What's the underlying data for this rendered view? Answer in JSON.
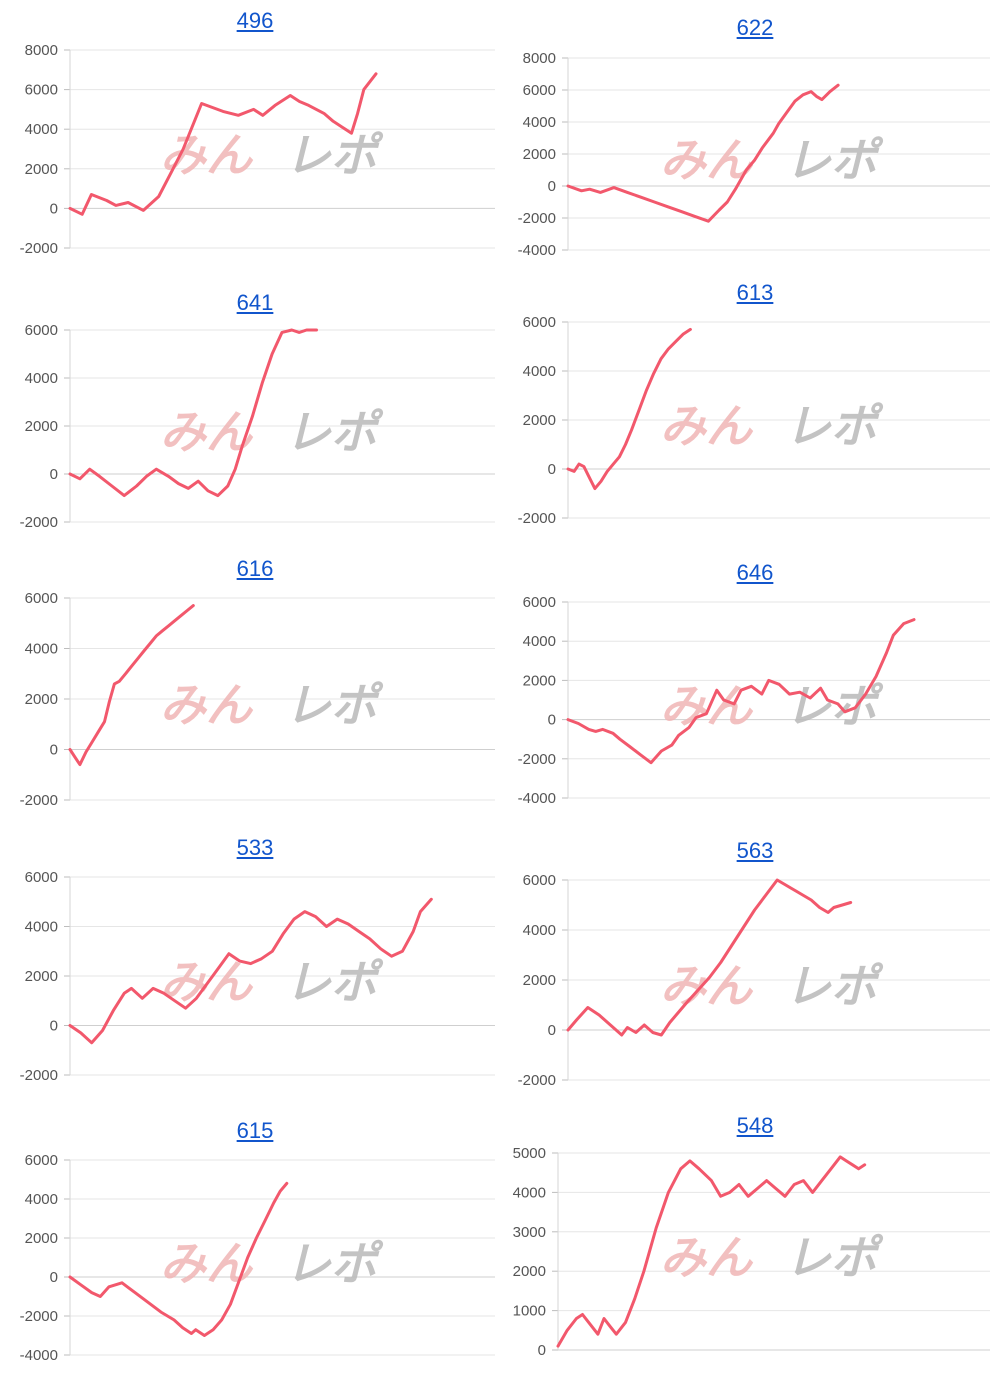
{
  "colors": {
    "series": "#f2586c",
    "grid": "#e6e6e6",
    "axis": "#bdbdbd",
    "title_link": "#1155cc",
    "watermark_red": "#f0b5b5",
    "watermark_gray": "#b8b8b8"
  },
  "watermark": {
    "text": "みんレポ"
  },
  "chart_data": [
    {
      "type": "line",
      "title": "496",
      "yticks": [
        8000,
        6000,
        4000,
        2000,
        0,
        -2000
      ],
      "ylim": [
        -2000,
        8000
      ],
      "x": [
        0,
        4,
        7,
        12,
        15,
        19,
        24,
        29,
        33,
        37,
        43,
        50,
        55,
        60,
        63,
        67,
        72,
        75,
        78,
        83,
        86,
        89,
        92,
        94,
        96,
        100
      ],
      "values": [
        0,
        -300,
        700,
        400,
        150,
        300,
        -100,
        600,
        1800,
        3000,
        5300,
        4900,
        4700,
        5000,
        4700,
        5200,
        5700,
        5400,
        5200,
        4800,
        4400,
        4100,
        3800,
        4800,
        6000,
        6800
      ]
    },
    {
      "type": "line",
      "title": "622",
      "yticks": [
        8000,
        6000,
        4000,
        2000,
        0,
        -2000,
        -4000
      ],
      "ylim": [
        -4000,
        8000
      ],
      "x": [
        0,
        5,
        8,
        12,
        17,
        22,
        27,
        32,
        37,
        42,
        47,
        52,
        56,
        59,
        62,
        66,
        69,
        72,
        76,
        78,
        81,
        84,
        87,
        90,
        92,
        94,
        97,
        100
      ],
      "values": [
        0,
        -300,
        -200,
        -400,
        -100,
        -400,
        -700,
        -1000,
        -1300,
        -1600,
        -1900,
        -2200,
        -1500,
        -1000,
        -200,
        1000,
        1600,
        2400,
        3300,
        3900,
        4600,
        5300,
        5700,
        5900,
        5600,
        5400,
        5900,
        6300
      ]
    },
    {
      "type": "line",
      "title": "641",
      "yticks": [
        6000,
        4000,
        2000,
        0,
        -2000
      ],
      "ylim": [
        -2000,
        6000
      ],
      "x": [
        0,
        4,
        8,
        12,
        17,
        22,
        27,
        31,
        35,
        40,
        44,
        48,
        52,
        56,
        60,
        64,
        67,
        70,
        74,
        78,
        82,
        86,
        90,
        93,
        96,
        100
      ],
      "values": [
        0,
        -200,
        200,
        -100,
        -500,
        -900,
        -500,
        -100,
        200,
        -100,
        -400,
        -600,
        -300,
        -700,
        -900,
        -500,
        200,
        1200,
        2400,
        3800,
        5000,
        5900,
        6000,
        5900,
        6000,
        6000
      ]
    },
    {
      "type": "line",
      "title": "613",
      "yticks": [
        6000,
        4000,
        2000,
        0,
        -2000
      ],
      "ylim": [
        -2000,
        6000
      ],
      "x": [
        0,
        5,
        9,
        13,
        17,
        22,
        27,
        32,
        37,
        42,
        47,
        52,
        58,
        64,
        70,
        76,
        82,
        88,
        94,
        100
      ],
      "values": [
        0,
        -100,
        200,
        100,
        -300,
        -800,
        -500,
        -100,
        200,
        500,
        1000,
        1600,
        2400,
        3200,
        3900,
        4500,
        4900,
        5200,
        5500,
        5700
      ]
    },
    {
      "type": "line",
      "title": "616",
      "yticks": [
        6000,
        4000,
        2000,
        0,
        -2000
      ],
      "ylim": [
        -2000,
        6000
      ],
      "x": [
        0,
        4,
        8,
        13,
        18,
        23,
        28,
        32,
        36,
        40,
        45,
        50,
        55,
        60,
        65,
        70,
        75,
        80,
        85,
        90,
        95,
        100
      ],
      "values": [
        0,
        -300,
        -600,
        -100,
        300,
        700,
        1100,
        1900,
        2600,
        2700,
        3000,
        3300,
        3600,
        3900,
        4200,
        4500,
        4700,
        4900,
        5100,
        5300,
        5500,
        5700
      ]
    },
    {
      "type": "line",
      "title": "646",
      "yticks": [
        6000,
        4000,
        2000,
        0,
        -2000,
        -4000
      ],
      "ylim": [
        -4000,
        6000
      ],
      "x": [
        0,
        3,
        6,
        8,
        10,
        13,
        15,
        18,
        21,
        24,
        27,
        30,
        32,
        35,
        37,
        40,
        43,
        45,
        48,
        50,
        53,
        56,
        58,
        61,
        64,
        67,
        70,
        73,
        75,
        78,
        80,
        83,
        86,
        89,
        92,
        94,
        97,
        100
      ],
      "values": [
        0,
        -200,
        -500,
        -600,
        -500,
        -700,
        -1000,
        -1400,
        -1800,
        -2200,
        -1600,
        -1300,
        -800,
        -400,
        100,
        300,
        1500,
        1000,
        800,
        1500,
        1700,
        1300,
        2000,
        1800,
        1300,
        1400,
        1100,
        1600,
        1000,
        800,
        400,
        600,
        1300,
        2200,
        3400,
        4300,
        4900,
        5100
      ]
    },
    {
      "type": "line",
      "title": "533",
      "yticks": [
        6000,
        4000,
        2000,
        0,
        -2000
      ],
      "ylim": [
        -2000,
        6000
      ],
      "x": [
        0,
        3,
        6,
        9,
        12,
        15,
        17,
        20,
        23,
        26,
        29,
        32,
        35,
        38,
        41,
        44,
        47,
        50,
        53,
        56,
        59,
        62,
        65,
        68,
        71,
        74,
        77,
        80,
        83,
        86,
        89,
        92,
        95,
        97,
        100
      ],
      "values": [
        0,
        -300,
        -700,
        -200,
        600,
        1300,
        1500,
        1100,
        1500,
        1300,
        1000,
        700,
        1100,
        1700,
        2300,
        2900,
        2600,
        2500,
        2700,
        3000,
        3700,
        4300,
        4600,
        4400,
        4000,
        4300,
        4100,
        3800,
        3500,
        3100,
        2800,
        3000,
        3800,
        4600,
        5100
      ]
    },
    {
      "type": "line",
      "title": "563",
      "yticks": [
        6000,
        4000,
        2000,
        0,
        -2000
      ],
      "ylim": [
        -2000,
        6000
      ],
      "x": [
        0,
        3,
        7,
        11,
        15,
        19,
        21,
        24,
        27,
        30,
        33,
        36,
        39,
        42,
        46,
        50,
        54,
        58,
        62,
        66,
        70,
        74,
        77,
        80,
        83,
        86,
        89,
        92,
        94,
        97,
        100
      ],
      "values": [
        0,
        400,
        900,
        600,
        200,
        -200,
        100,
        -100,
        200,
        -100,
        -200,
        300,
        700,
        1100,
        1600,
        2100,
        2700,
        3400,
        4100,
        4800,
        5400,
        6000,
        5800,
        5600,
        5400,
        5200,
        4900,
        4700,
        4900,
        5000,
        5100
      ]
    },
    {
      "type": "line",
      "title": "615",
      "yticks": [
        6000,
        4000,
        2000,
        0,
        -2000,
        -4000
      ],
      "ylim": [
        -4000,
        6000
      ],
      "x": [
        0,
        5,
        10,
        14,
        18,
        24,
        30,
        36,
        42,
        48,
        52,
        56,
        58,
        62,
        66,
        70,
        74,
        78,
        82,
        86,
        90,
        94,
        97,
        100
      ],
      "values": [
        0,
        -400,
        -800,
        -1000,
        -500,
        -300,
        -800,
        -1300,
        -1800,
        -2200,
        -2600,
        -2900,
        -2700,
        -3000,
        -2700,
        -2200,
        -1400,
        -200,
        1000,
        2000,
        2900,
        3800,
        4400,
        4800
      ]
    },
    {
      "type": "line",
      "title": "548",
      "yticks": [
        5000,
        4000,
        3000,
        2000,
        1000,
        0
      ],
      "ylim": [
        0,
        5000
      ],
      "x": [
        0,
        3,
        6,
        8,
        10,
        13,
        15,
        17,
        19,
        22,
        25,
        28,
        32,
        36,
        40,
        43,
        46,
        50,
        53,
        56,
        59,
        62,
        65,
        68,
        71,
        74,
        77,
        80,
        83,
        86,
        89,
        92,
        94,
        96,
        98,
        100
      ],
      "values": [
        100,
        500,
        800,
        900,
        700,
        400,
        800,
        600,
        400,
        700,
        1300,
        2000,
        3100,
        4000,
        4600,
        4800,
        4600,
        4300,
        3900,
        4000,
        4200,
        3900,
        4100,
        4300,
        4100,
        3900,
        4200,
        4300,
        4000,
        4300,
        4600,
        4900,
        4800,
        4700,
        4600,
        4700
      ]
    }
  ]
}
